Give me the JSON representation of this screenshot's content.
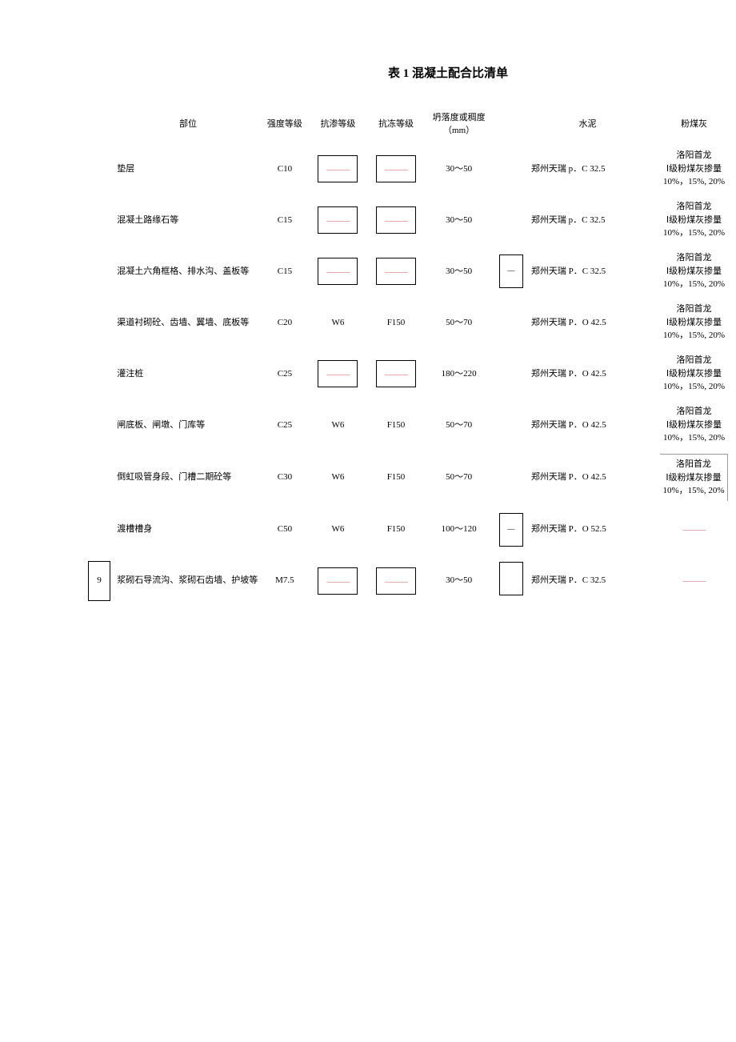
{
  "title": "表 1 混凝土配合比清单",
  "headers": {
    "part": "部位",
    "grade": "强度等级",
    "w": "抗渗等级",
    "f": "抗冻等级",
    "slump": "坍落度或稠度（mm）",
    "cement": "水泥",
    "ash": "粉煤灰"
  },
  "dash": "————",
  "tiny_dash": "——",
  "rows": [
    {
      "idx": "",
      "part": "垫层",
      "grade": "C10",
      "w_box": true,
      "w": "dash",
      "f_box": true,
      "f": "dash",
      "slump": "30〜50",
      "gap_box": false,
      "gap": "",
      "cement": "郑州天瑞 p．C 32.5",
      "ash": "洛阳首龙\nⅠ级粉煤灰掺量\n10%，15%, 20%",
      "ash_box": false
    },
    {
      "idx": "",
      "part": "混凝土路缘石等",
      "grade": "C15",
      "w_box": true,
      "w": "dash",
      "f_box": true,
      "f": "dash",
      "slump": "30〜50",
      "gap_box": false,
      "gap": "",
      "cement": "郑州天瑞 p．C 32.5",
      "ash": "洛阳首龙\nⅠ级粉煤灰掺量\n10%，15%, 20%",
      "ash_box": false
    },
    {
      "idx": "",
      "part": "混凝土六角框格、排水沟、盖板等",
      "grade": "C15",
      "w_box": true,
      "w": "dash",
      "f_box": true,
      "f": "dash",
      "slump": "30〜50",
      "gap_box": true,
      "gap": "—",
      "cement": "郑州天瑞 P．C 32.5",
      "ash": "洛阳首龙\nⅠ级粉煤灰掺量\n10%，15%, 20%",
      "ash_box": false
    },
    {
      "idx": "",
      "part": "渠道衬砌砼、齿墙、翼墙、底板等",
      "grade": "C20",
      "w_box": false,
      "w": "W6",
      "f_box": false,
      "f": "F150",
      "slump": "50〜70",
      "gap_box": false,
      "gap": "",
      "cement": "郑州天瑞 P．O 42.5",
      "ash": "洛阳首龙\nⅠ级粉煤灰掺量\n10%，15%, 20%",
      "ash_box": false
    },
    {
      "idx": "",
      "part": "灌注桩",
      "grade": "C25",
      "w_box": true,
      "w": "dash",
      "f_box": true,
      "f": "dash",
      "slump": "180〜220",
      "gap_box": false,
      "gap": "",
      "cement": "郑州天瑞 P．O 42.5",
      "ash": "洛阳首龙\nⅠ级粉煤灰掺量\n10%，15%, 20%",
      "ash_box": false
    },
    {
      "idx": "",
      "part": "闸底板、闸墩、门库等",
      "grade": "C25",
      "w_box": false,
      "w": "W6",
      "f_box": false,
      "f": "F150",
      "slump": "50〜70",
      "gap_box": false,
      "gap": "",
      "cement": "郑州天瑞 P．O 42.5",
      "ash": "洛阳首龙\nⅠ级粉煤灰掺量\n10%，15%, 20%",
      "ash_box": false
    },
    {
      "idx": "",
      "part": "倒虹吸管身段、门槽二期砼等",
      "grade": "C30",
      "w_box": false,
      "w": "W6",
      "f_box": false,
      "f": "F150",
      "slump": "50〜70",
      "gap_box": false,
      "gap": "",
      "cement": "郑州天瑞 P．O 42.5",
      "ash": "洛阳首龙\nⅠ级粉煤灰掺量\n10%，15%, 20%",
      "ash_box": true
    },
    {
      "idx": "",
      "part": "渡槽槽身",
      "grade": "C50",
      "w_box": false,
      "w": "W6",
      "f_box": false,
      "f": "F150",
      "slump": "100〜120",
      "gap_box": true,
      "gap": "—",
      "cement": "郑州天瑞 P．O 52.5",
      "ash": "dash",
      "ash_box": false
    },
    {
      "idx": "9",
      "part": "浆砌石导流沟、浆砌石齿墙、护坡等",
      "grade": "M7.5",
      "w_box": true,
      "w": "dash",
      "f_box": true,
      "f": "dash",
      "slump": "30〜50",
      "gap_box": true,
      "gap": "",
      "cement": "郑州天瑞 P．C 32.5",
      "ash": "dash",
      "ash_box": false
    }
  ]
}
